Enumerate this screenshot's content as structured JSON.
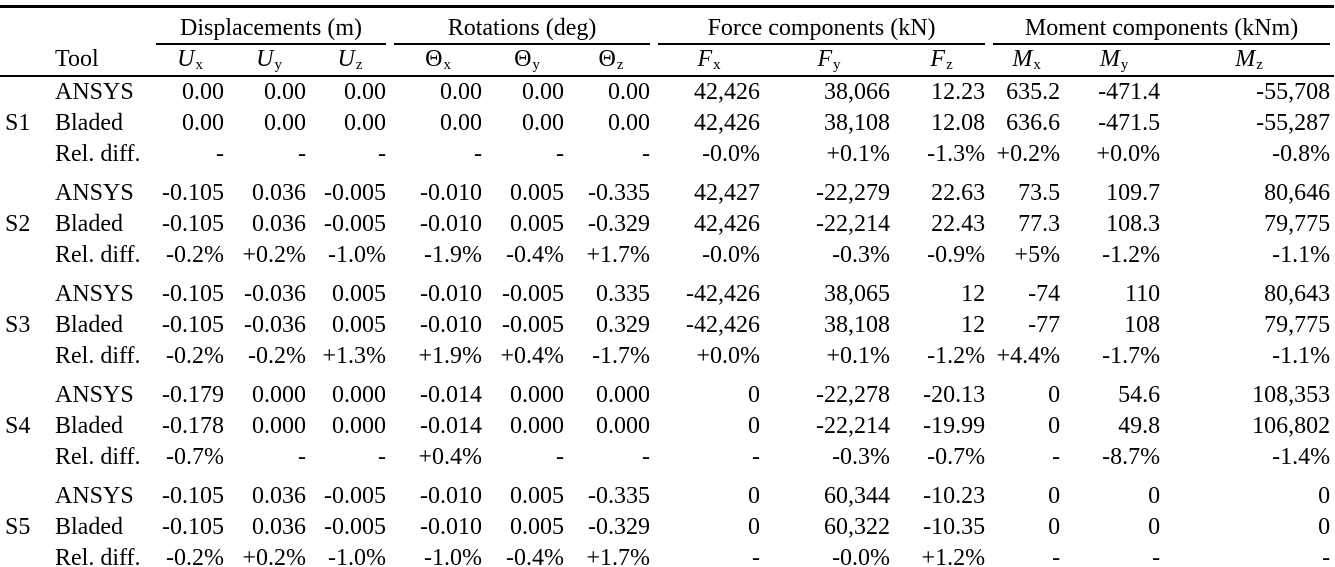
{
  "table": {
    "column_groups": [
      {
        "label": "Displacements (m)"
      },
      {
        "label": "Rotations (deg)"
      },
      {
        "label": "Force components (kN)"
      },
      {
        "label": "Moment components (kNm)"
      }
    ],
    "tool_header": "Tool",
    "sub_headers": [
      {
        "name": "ux",
        "base": "U",
        "sub": "x",
        "italic": true
      },
      {
        "name": "uy",
        "base": "U",
        "sub": "y",
        "italic": true
      },
      {
        "name": "uz",
        "base": "U",
        "sub": "z",
        "italic": true
      },
      {
        "name": "theta-x",
        "base": "Θ",
        "sub": "x",
        "italic": false
      },
      {
        "name": "theta-y",
        "base": "Θ",
        "sub": "y",
        "italic": false
      },
      {
        "name": "theta-z",
        "base": "Θ",
        "sub": "z",
        "italic": false
      },
      {
        "name": "fx",
        "base": "F",
        "sub": "x",
        "italic": true
      },
      {
        "name": "fy",
        "base": "F",
        "sub": "y",
        "italic": true
      },
      {
        "name": "fz",
        "base": "F",
        "sub": "z",
        "italic": true
      },
      {
        "name": "mx",
        "base": "M",
        "sub": "x",
        "italic": true
      },
      {
        "name": "my",
        "base": "M",
        "sub": "y",
        "italic": true
      },
      {
        "name": "mz",
        "base": "M",
        "sub": "z",
        "italic": true
      }
    ],
    "groups": [
      {
        "id": "S1",
        "rows": [
          {
            "tool": "ANSYS",
            "values": [
              "0.00",
              "0.00",
              "0.00",
              "0.00",
              "0.00",
              "0.00",
              "42,426",
              "38,066",
              "12.23",
              "635.2",
              "-471.4",
              "-55,708"
            ]
          },
          {
            "tool": "Bladed",
            "values": [
              "0.00",
              "0.00",
              "0.00",
              "0.00",
              "0.00",
              "0.00",
              "42,426",
              "38,108",
              "12.08",
              "636.6",
              "-471.5",
              "-55,287"
            ]
          },
          {
            "tool": "Rel. diff.",
            "values": [
              "-",
              "-",
              "-",
              "-",
              "-",
              "-",
              "-0.0%",
              "+0.1%",
              "-1.3%",
              "+0.2%",
              "+0.0%",
              "-0.8%"
            ]
          }
        ]
      },
      {
        "id": "S2",
        "rows": [
          {
            "tool": "ANSYS",
            "values": [
              "-0.105",
              "0.036",
              "-0.005",
              "-0.010",
              "0.005",
              "-0.335",
              "42,427",
              "-22,279",
              "22.63",
              "73.5",
              "109.7",
              "80,646"
            ]
          },
          {
            "tool": "Bladed",
            "values": [
              "-0.105",
              "0.036",
              "-0.005",
              "-0.010",
              "0.005",
              "-0.329",
              "42,426",
              "-22,214",
              "22.43",
              "77.3",
              "108.3",
              "79,775"
            ]
          },
          {
            "tool": "Rel. diff.",
            "values": [
              "-0.2%",
              "+0.2%",
              "-1.0%",
              "-1.9%",
              "-0.4%",
              "+1.7%",
              "-0.0%",
              "-0.3%",
              "-0.9%",
              "+5%",
              "-1.2%",
              "-1.1%"
            ]
          }
        ]
      },
      {
        "id": "S3",
        "rows": [
          {
            "tool": "ANSYS",
            "values": [
              "-0.105",
              "-0.036",
              "0.005",
              "-0.010",
              "-0.005",
              "0.335",
              "-42,426",
              "38,065",
              "12",
              "-74",
              "110",
              "80,643"
            ]
          },
          {
            "tool": "Bladed",
            "values": [
              "-0.105",
              "-0.036",
              "0.005",
              "-0.010",
              "-0.005",
              "0.329",
              "-42,426",
              "38,108",
              "12",
              "-77",
              "108",
              "79,775"
            ]
          },
          {
            "tool": "Rel. diff.",
            "values": [
              "-0.2%",
              "-0.2%",
              "+1.3%",
              "+1.9%",
              "+0.4%",
              "-1.7%",
              "+0.0%",
              "+0.1%",
              "-1.2%",
              "+4.4%",
              "-1.7%",
              "-1.1%"
            ]
          }
        ]
      },
      {
        "id": "S4",
        "rows": [
          {
            "tool": "ANSYS",
            "values": [
              "-0.179",
              "0.000",
              "0.000",
              "-0.014",
              "0.000",
              "0.000",
              "0",
              "-22,278",
              "-20.13",
              "0",
              "54.6",
              "108,353"
            ]
          },
          {
            "tool": "Bladed",
            "values": [
              "-0.178",
              "0.000",
              "0.000",
              "-0.014",
              "0.000",
              "0.000",
              "0",
              "-22,214",
              "-19.99",
              "0",
              "49.8",
              "106,802"
            ]
          },
          {
            "tool": "Rel. diff.",
            "values": [
              "-0.7%",
              "-",
              "-",
              "+0.4%",
              "-",
              "-",
              "-",
              "-0.3%",
              "-0.7%",
              "-",
              "-8.7%",
              "-1.4%"
            ]
          }
        ]
      },
      {
        "id": "S5",
        "rows": [
          {
            "tool": "ANSYS",
            "values": [
              "-0.105",
              "0.036",
              "-0.005",
              "-0.010",
              "0.005",
              "-0.335",
              "0",
              "60,344",
              "-10.23",
              "0",
              "0",
              "0"
            ]
          },
          {
            "tool": "Bladed",
            "values": [
              "-0.105",
              "0.036",
              "-0.005",
              "-0.010",
              "0.005",
              "-0.329",
              "0",
              "60,322",
              "-10.35",
              "0",
              "0",
              "0"
            ]
          },
          {
            "tool": "Rel. diff.",
            "values": [
              "-0.2%",
              "+0.2%",
              "-1.0%",
              "-1.0%",
              "-0.4%",
              "+1.7%",
              "-",
              "-0.0%",
              "+1.2%",
              "-",
              "-",
              "-"
            ]
          }
        ]
      }
    ]
  }
}
